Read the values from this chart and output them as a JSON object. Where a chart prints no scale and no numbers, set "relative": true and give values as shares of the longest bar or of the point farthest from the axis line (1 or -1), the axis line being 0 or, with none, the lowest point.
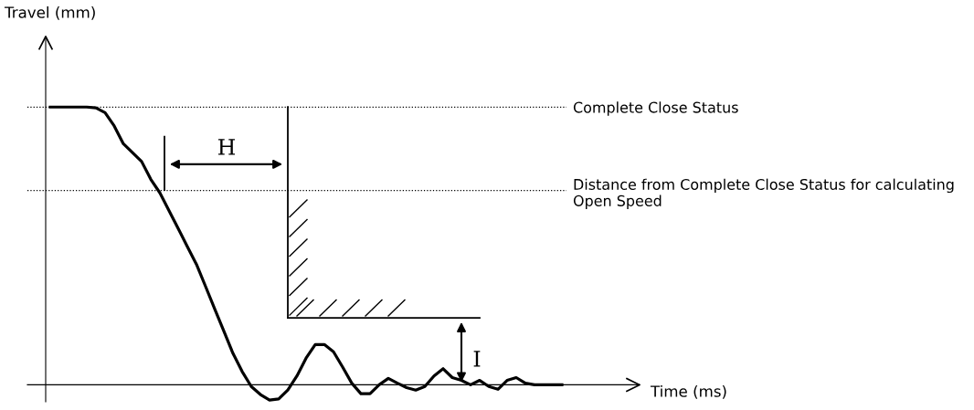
{
  "chart_data": {
    "type": "line",
    "relative": true,
    "categories": [
      null,
      null,
      null,
      null,
      null,
      null,
      null,
      null,
      null,
      null,
      null,
      null,
      null,
      null,
      null,
      null,
      null,
      null,
      null,
      null,
      null,
      null,
      null,
      null,
      null,
      null,
      null,
      null,
      null,
      null,
      null,
      null,
      null,
      null,
      null,
      null,
      null,
      null,
      null,
      null,
      null,
      null,
      null,
      null,
      null,
      null,
      null,
      null,
      null,
      null,
      null,
      null,
      null,
      null,
      null,
      null,
      null
    ],
    "series": [
      {
        "color": "#000000",
        "values": [
          1.0,
          1.0,
          1.0,
          1.0,
          1.0,
          0.997,
          0.98,
          0.932,
          0.868,
          0.836,
          0.804,
          0.74,
          0.691,
          0.627,
          0.563,
          0.498,
          0.434,
          0.354,
          0.273,
          0.193,
          0.113,
          0.048,
          -0.006,
          -0.035,
          -0.055,
          -0.051,
          -0.019,
          0.032,
          0.096,
          0.145,
          0.145,
          0.119,
          0.064,
          0.006,
          -0.032,
          -0.032,
          0.0,
          0.023,
          0.006,
          -0.01,
          -0.019,
          -0.006,
          0.032,
          0.058,
          0.026,
          0.016,
          0.0,
          0.016,
          -0.006,
          -0.016,
          0.016,
          0.026,
          0.006,
          0.0,
          0.0,
          0.0,
          0.0
        ]
      }
    ],
    "ref_lines": [
      {
        "axis": "y",
        "value": 1.0,
        "label": "Complete Close Status",
        "color": "#000000",
        "line_style": "dotted"
      },
      {
        "axis": "y",
        "value": 0.7,
        "label": "Distance from Complete Close Status for calculating Open Speed",
        "color": "#000000",
        "line_style": "dotted"
      }
    ],
    "annotations": [
      "Travel (mm)",
      "Time (ms)",
      "H",
      "I"
    ],
    "legend": false,
    "marker": "none",
    "line_style": "solid"
  }
}
